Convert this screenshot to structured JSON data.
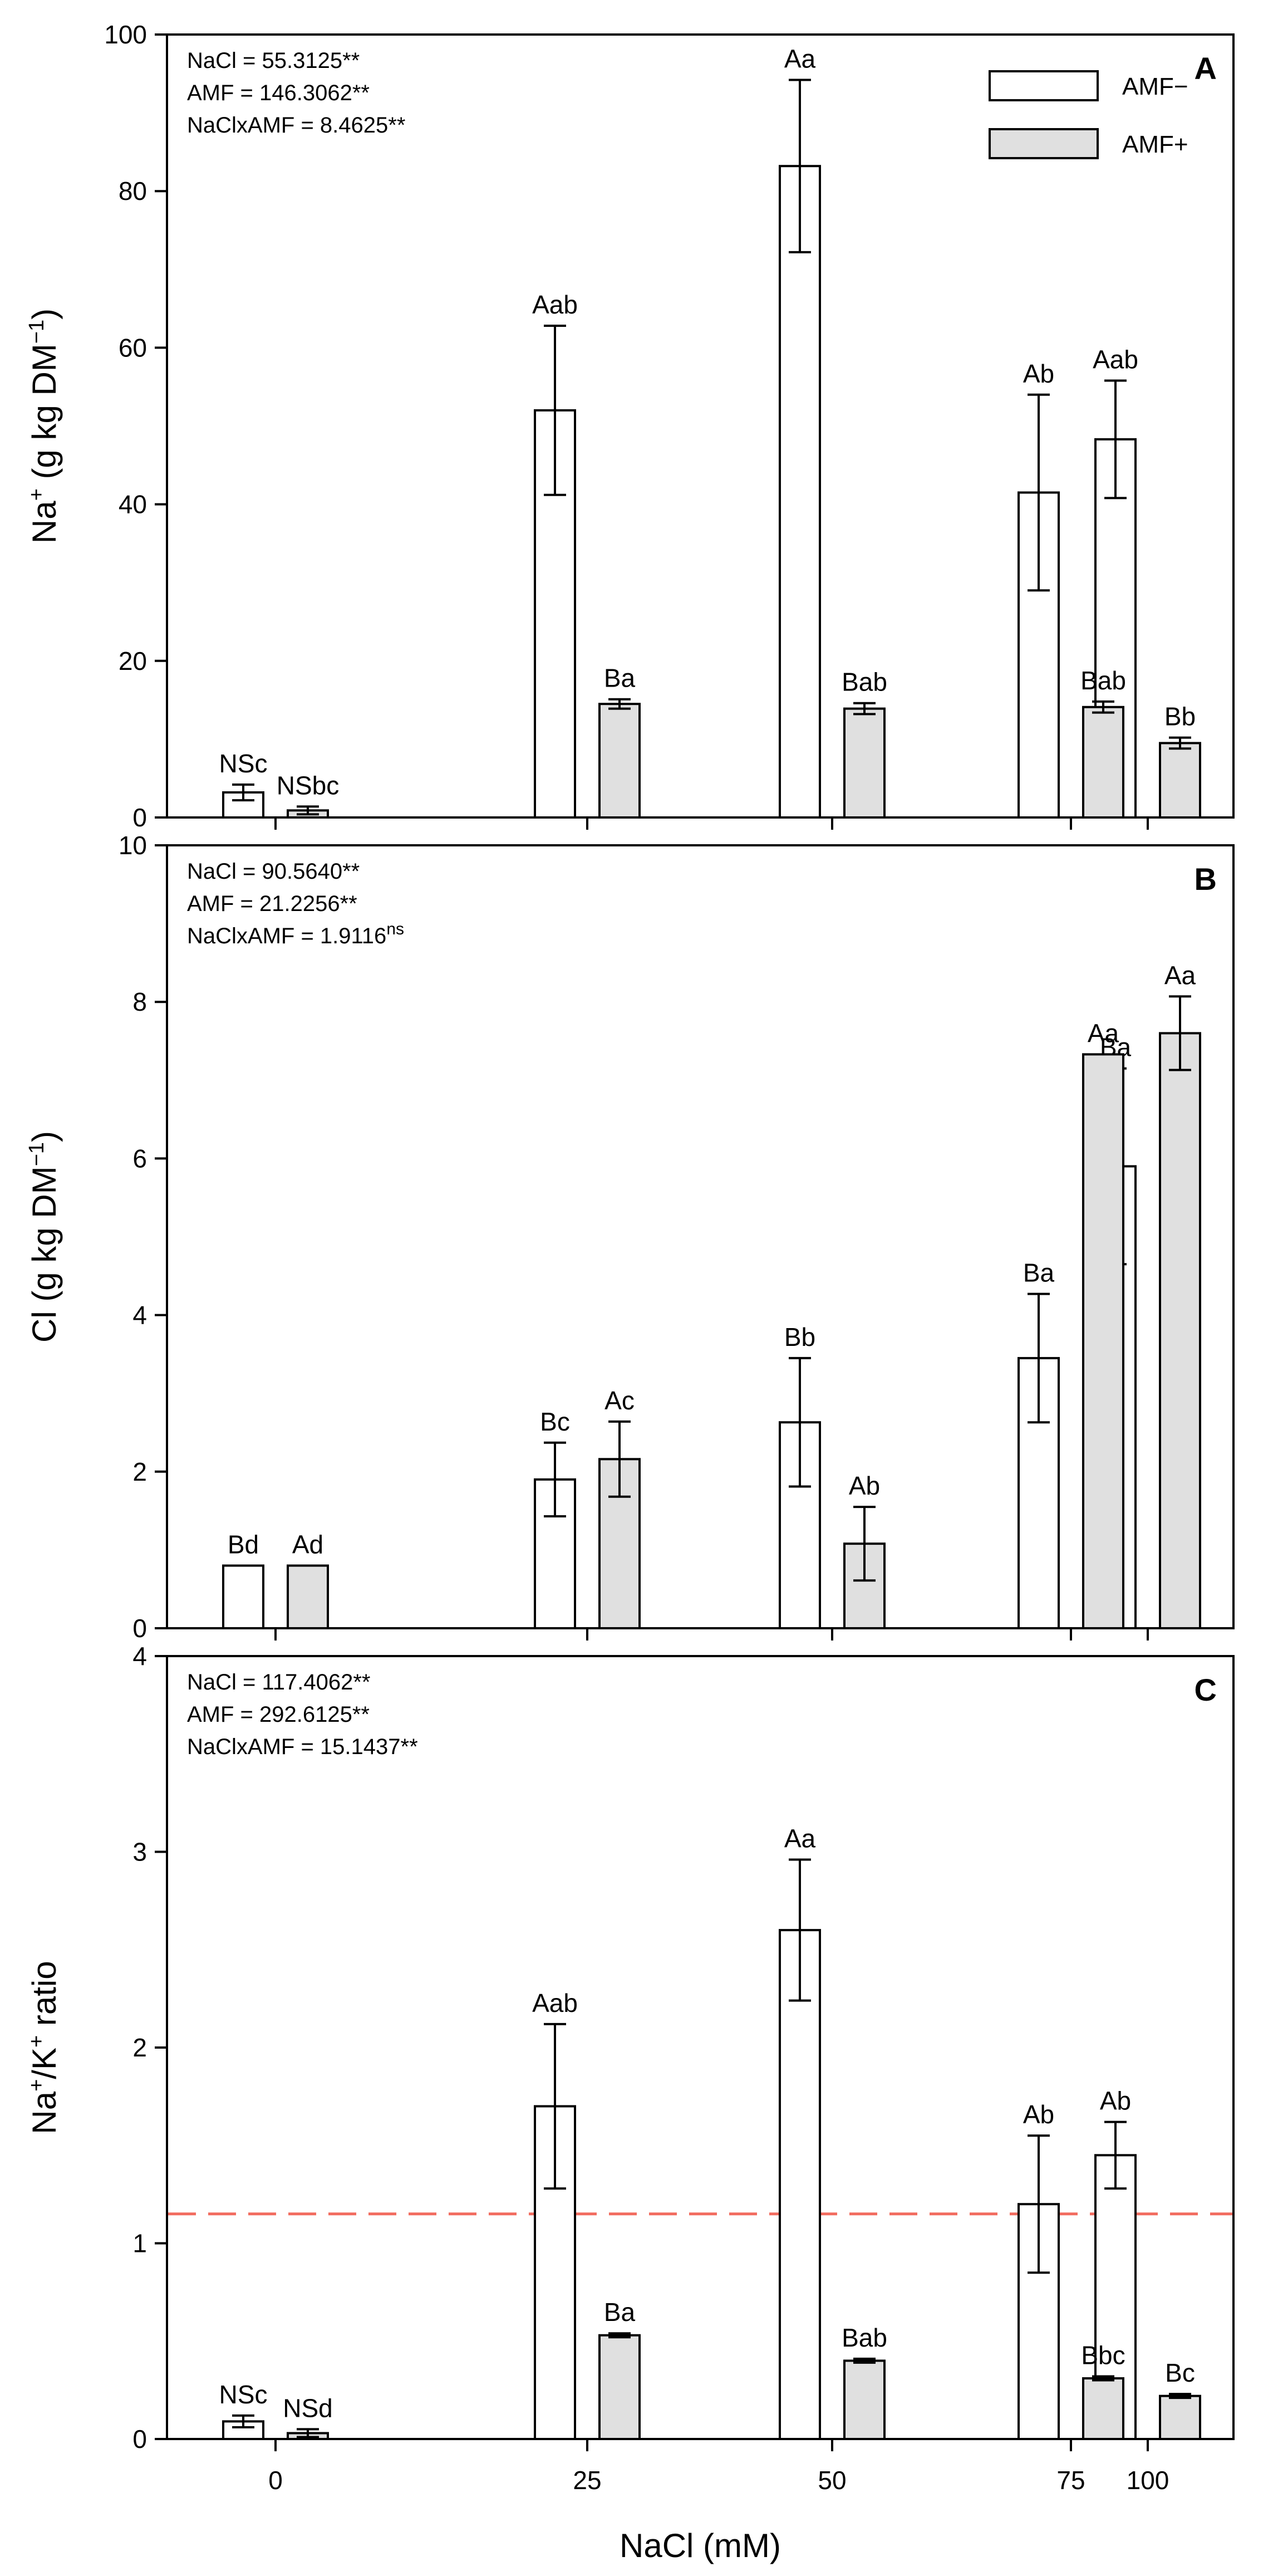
{
  "figure": {
    "xlabel": "NaCl (mM)"
  },
  "chart_data": [
    {
      "type": "bar",
      "panel": "A",
      "ylabel_main": "Na",
      "ylabel_sup": "+",
      "ylabel_rest": " (g kg DM",
      "ylabel_sup2": "−1",
      "ylabel_end": ")",
      "ylim": [
        0,
        100
      ],
      "yticks": [
        0,
        20,
        40,
        60,
        80,
        100
      ],
      "categories": [
        "0",
        "25",
        "50",
        "75",
        "100"
      ],
      "stats": [
        {
          "text": "NaCl = 55.3125**"
        },
        {
          "text": "AMF = 146.3062**"
        },
        {
          "text": "NaClxAMF = 8.4625**"
        }
      ],
      "legend": [
        {
          "name": "AMF−",
          "color": "#ffffff"
        },
        {
          "name": "AMF+",
          "color": "#e0e0e0"
        }
      ],
      "series": [
        {
          "name": "AMF−",
          "color": "#ffffff",
          "values": [
            3.2,
            52.0,
            83.2,
            41.5,
            48.3
          ],
          "errors": [
            1.0,
            10.8,
            11.0,
            12.5,
            7.5
          ],
          "labels": [
            "NSc",
            "Aab",
            "Aa",
            "Ab",
            "Aab"
          ]
        },
        {
          "name": "AMF+",
          "color": "#e0e0e0",
          "values": [
            0.9,
            14.5,
            13.9,
            14.1,
            9.5
          ],
          "errors": [
            0.5,
            0.6,
            0.7,
            0.7,
            0.7
          ],
          "labels": [
            "NSbc",
            "Ba",
            "Bab",
            "Bab",
            "Bb"
          ]
        }
      ]
    },
    {
      "type": "bar",
      "panel": "B",
      "ylabel_main": "Cl",
      "ylabel_sup": "",
      "ylabel_rest": " (g kg DM",
      "ylabel_sup2": "−1",
      "ylabel_end": ")",
      "ylim": [
        0,
        10
      ],
      "yticks": [
        0,
        2,
        4,
        6,
        8,
        10
      ],
      "categories": [
        "0",
        "25",
        "50",
        "75",
        "100"
      ],
      "stats": [
        {
          "text": "NaCl = 90.5640**"
        },
        {
          "text": "AMF = 21.2256**"
        },
        {
          "text": "NaClxAMF = 1.9116",
          "sup": "ns"
        }
      ],
      "series": [
        {
          "name": "AMF−",
          "color": "#ffffff",
          "values": [
            0.8,
            1.9,
            2.63,
            3.45,
            5.9
          ],
          "errors": [
            0,
            0.47,
            0.82,
            0.82,
            1.25
          ],
          "labels": [
            "Bd",
            "Bc",
            "Bb",
            "Ba",
            "Ba"
          ]
        },
        {
          "name": "AMF+",
          "color": "#e0e0e0",
          "values": [
            0.8,
            2.16,
            1.08,
            7.33,
            7.6
          ],
          "errors": [
            0,
            0.48,
            0.47,
            0,
            0.47
          ],
          "labels": [
            "Ad",
            "Ac",
            "Ab",
            "Aa",
            "Aa"
          ]
        }
      ]
    },
    {
      "type": "bar",
      "panel": "C",
      "ylabel_main": "Na",
      "ylabel_sup": "+",
      "ylabel_rest": "/K",
      "ylabel_sup2": "+",
      "ylabel_end": " ratio",
      "ylim": [
        0,
        4
      ],
      "yticks": [
        0,
        1,
        2,
        3,
        4
      ],
      "categories": [
        "0",
        "25",
        "50",
        "75",
        "100"
      ],
      "reference_line": 1.15,
      "stats": [
        {
          "text": "NaCl = 117.4062**"
        },
        {
          "text": "AMF = 292.6125**"
        },
        {
          "text": "NaClxAMF = 15.1437**"
        }
      ],
      "series": [
        {
          "name": "AMF−",
          "color": "#ffffff",
          "values": [
            0.09,
            1.7,
            2.6,
            1.2,
            1.45
          ],
          "errors": [
            0.03,
            0.42,
            0.36,
            0.35,
            0.17
          ],
          "labels": [
            "NSc",
            "Aab",
            "Aa",
            "Ab",
            "Ab"
          ]
        },
        {
          "name": "AMF+",
          "color": "#e0e0e0",
          "values": [
            0.03,
            0.53,
            0.4,
            0.31,
            0.22
          ],
          "errors": [
            0.02,
            0.01,
            0.01,
            0.01,
            0.01
          ],
          "labels": [
            "NSd",
            "Ba",
            "Bab",
            "Bbc",
            "Bc"
          ]
        }
      ]
    }
  ]
}
